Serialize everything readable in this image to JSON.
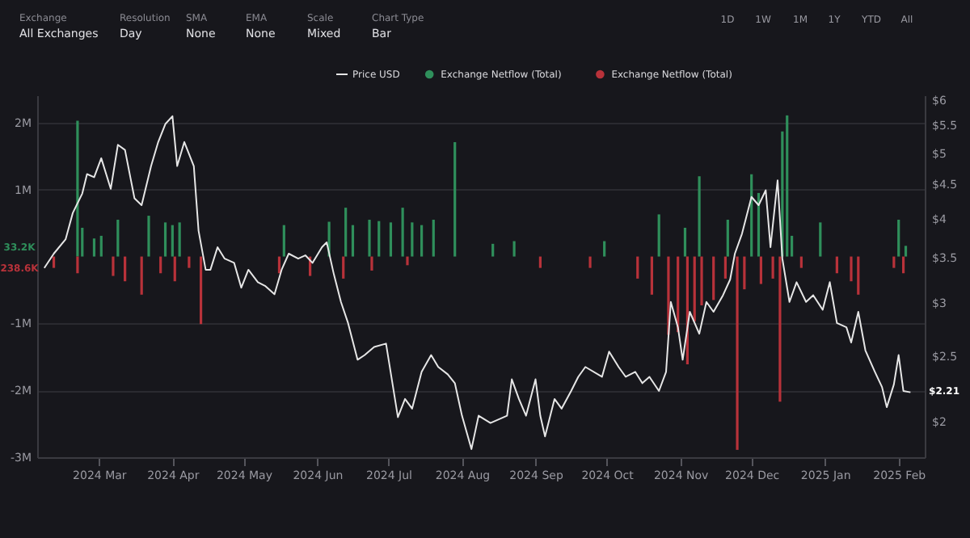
{
  "chart_data": {
    "type": "bar",
    "xlim": [
      "2024-02-04",
      "2025-02-12"
    ],
    "xticks": [
      {
        "value": "2024-03-01",
        "label": "2024 Mar"
      },
      {
        "value": "2024-04-01",
        "label": "2024 Apr"
      },
      {
        "value": "2024-05-01",
        "label": "2024 May"
      },
      {
        "value": "2024-06-01",
        "label": "2024 Jun"
      },
      {
        "value": "2024-07-01",
        "label": "2024 Jul"
      },
      {
        "value": "2024-08-01",
        "label": "2024 Aug"
      },
      {
        "value": "2024-09-01",
        "label": "2024 Sep"
      },
      {
        "value": "2024-10-01",
        "label": "2024 Oct"
      },
      {
        "value": "2024-11-01",
        "label": "2024 Nov"
      },
      {
        "value": "2024-12-01",
        "label": "2024 Dec"
      },
      {
        "value": "2025-01-01",
        "label": "2025 Jan"
      },
      {
        "value": "2025-02-01",
        "label": "2025 Feb"
      }
    ],
    "ylim": [
      -3000000,
      2410000
    ],
    "yticks": [
      {
        "value": 2000000,
        "label": "2M"
      },
      {
        "value": 1000000,
        "label": "1M"
      },
      {
        "value": -1000000,
        "label": "-1M"
      },
      {
        "value": -2000000,
        "label": "-2M"
      },
      {
        "value": -3000000,
        "label": "-3M"
      }
    ],
    "y2lim": [
      1.77,
      6.1
    ],
    "y2ticks": [
      {
        "value": 2,
        "label": "$2"
      },
      {
        "value": 2.5,
        "label": "$2.5"
      },
      {
        "value": 3,
        "label": "$3"
      },
      {
        "value": 3.5,
        "label": "$3.5"
      },
      {
        "value": 4,
        "label": "$4"
      },
      {
        "value": 4.5,
        "label": "$4.5"
      },
      {
        "value": 5,
        "label": "$5"
      },
      {
        "value": 5.5,
        "label": "$5.5"
      },
      {
        "value": 6,
        "label": "$6"
      }
    ],
    "log": "y2",
    "grid": "y",
    "legend": "top",
    "series": [
      {
        "name": "Price USD",
        "type": "line",
        "axis": "y2",
        "color": "#e6e6e6",
        "x": [
          "2024-02-07",
          "2024-02-11",
          "2024-02-16",
          "2024-02-19",
          "2024-02-23",
          "2024-02-25",
          "2024-02-28",
          "2024-03-02",
          "2024-03-06",
          "2024-03-09",
          "2024-03-12",
          "2024-03-16",
          "2024-03-19",
          "2024-03-23",
          "2024-03-26",
          "2024-03-29",
          "2024-04-01",
          "2024-04-03",
          "2024-04-06",
          "2024-04-10",
          "2024-04-12",
          "2024-04-15",
          "2024-04-17",
          "2024-04-20",
          "2024-04-23",
          "2024-04-27",
          "2024-04-30",
          "2024-05-03",
          "2024-05-07",
          "2024-05-10",
          "2024-05-14",
          "2024-05-17",
          "2024-05-20",
          "2024-05-24",
          "2024-05-27",
          "2024-05-30",
          "2024-06-03",
          "2024-06-05",
          "2024-06-08",
          "2024-06-11",
          "2024-06-14",
          "2024-06-18",
          "2024-06-21",
          "2024-06-25",
          "2024-06-30",
          "2024-07-05",
          "2024-07-08",
          "2024-07-11",
          "2024-07-15",
          "2024-07-19",
          "2024-07-22",
          "2024-07-26",
          "2024-07-29",
          "2024-08-01",
          "2024-08-05",
          "2024-08-08",
          "2024-08-13",
          "2024-08-20",
          "2024-08-22",
          "2024-08-25",
          "2024-08-28",
          "2024-09-01",
          "2024-09-03",
          "2024-09-05",
          "2024-09-09",
          "2024-09-12",
          "2024-09-16",
          "2024-09-19",
          "2024-09-22",
          "2024-09-29",
          "2024-10-02",
          "2024-10-06",
          "2024-10-09",
          "2024-10-13",
          "2024-10-16",
          "2024-10-19",
          "2024-10-23",
          "2024-10-26",
          "2024-10-28",
          "2024-10-31",
          "2024-11-02",
          "2024-11-05",
          "2024-11-09",
          "2024-11-12",
          "2024-11-15",
          "2024-11-19",
          "2024-11-22",
          "2024-11-24",
          "2024-11-27",
          "2024-12-01",
          "2024-12-04",
          "2024-12-07",
          "2024-12-09",
          "2024-12-12",
          "2024-12-14",
          "2024-12-17",
          "2024-12-20",
          "2024-12-24",
          "2024-12-27",
          "2024-12-31",
          "2025-01-03",
          "2025-01-06",
          "2025-01-10",
          "2025-01-12",
          "2025-01-15",
          "2025-01-18",
          "2025-01-22",
          "2025-01-25",
          "2025-01-27",
          "2025-01-30",
          "2025-02-01",
          "2025-02-03",
          "2025-02-06"
        ],
        "values": [
          3.38,
          3.55,
          3.73,
          4.08,
          4.36,
          4.66,
          4.61,
          4.92,
          4.43,
          5.15,
          5.06,
          4.29,
          4.19,
          4.79,
          5.2,
          5.53,
          5.68,
          4.79,
          5.2,
          4.79,
          3.84,
          3.36,
          3.36,
          3.63,
          3.49,
          3.44,
          3.16,
          3.36,
          3.22,
          3.18,
          3.09,
          3.36,
          3.55,
          3.49,
          3.53,
          3.44,
          3.63,
          3.69,
          3.31,
          3.01,
          2.8,
          2.47,
          2.51,
          2.58,
          2.61,
          2.03,
          2.16,
          2.09,
          2.37,
          2.51,
          2.41,
          2.35,
          2.28,
          2.04,
          1.82,
          2.04,
          1.99,
          2.04,
          2.31,
          2.16,
          2.04,
          2.31,
          2.04,
          1.9,
          2.16,
          2.09,
          2.22,
          2.33,
          2.41,
          2.33,
          2.54,
          2.41,
          2.33,
          2.37,
          2.28,
          2.33,
          2.22,
          2.37,
          3.01,
          2.76,
          2.47,
          2.91,
          2.7,
          3.01,
          2.91,
          3.08,
          3.25,
          3.55,
          3.8,
          4.31,
          4.19,
          4.41,
          3.63,
          4.56,
          3.49,
          3.01,
          3.22,
          3.01,
          3.08,
          2.93,
          3.22,
          2.8,
          2.76,
          2.62,
          2.91,
          2.55,
          2.37,
          2.25,
          2.1,
          2.27,
          2.51,
          2.22,
          2.21
        ]
      },
      {
        "name": "Exchange Netflow (Total)",
        "color": "#2f8f5b",
        "x": [
          "2024-02-21",
          "2024-02-23",
          "2024-02-28",
          "2024-03-02",
          "2024-03-09",
          "2024-03-22",
          "2024-03-29",
          "2024-04-01",
          "2024-04-04",
          "2024-05-18",
          "2024-06-06",
          "2024-06-13",
          "2024-06-16",
          "2024-06-23",
          "2024-06-27",
          "2024-07-02",
          "2024-07-07",
          "2024-07-11",
          "2024-07-15",
          "2024-07-20",
          "2024-07-29",
          "2024-08-14",
          "2024-08-23",
          "2024-09-30",
          "2024-10-23",
          "2024-11-03",
          "2024-11-09",
          "2024-11-21",
          "2024-12-01",
          "2024-12-04",
          "2024-12-14",
          "2024-12-16",
          "2024-12-18",
          "2024-12-30",
          "2025-02-01",
          "2025-02-04"
        ],
        "values": [
          2030000,
          430000,
          270000,
          310000,
          550000,
          610000,
          510000,
          470000,
          510000,
          470000,
          520000,
          730000,
          470000,
          550000,
          530000,
          510000,
          730000,
          510000,
          470000,
          550000,
          1710000,
          190000,
          230000,
          230000,
          630000,
          430000,
          1200000,
          550000,
          1230000,
          950000,
          1870000,
          2110000,
          310000,
          510000,
          550000,
          160000
        ]
      },
      {
        "name": "Exchange Netflow (Total)",
        "color": "#b8323a",
        "x": [
          "2024-02-11",
          "2024-02-21",
          "2024-03-07",
          "2024-03-12",
          "2024-03-19",
          "2024-03-27",
          "2024-04-02",
          "2024-04-08",
          "2024-04-13",
          "2024-05-16",
          "2024-05-29",
          "2024-06-12",
          "2024-06-24",
          "2024-07-09",
          "2024-09-03",
          "2024-09-24",
          "2024-10-14",
          "2024-10-20",
          "2024-10-27",
          "2024-10-31",
          "2024-11-04",
          "2024-11-07",
          "2024-11-10",
          "2024-11-15",
          "2024-11-20",
          "2024-11-25",
          "2024-11-28",
          "2024-12-05",
          "2024-12-10",
          "2024-12-13",
          "2024-12-22",
          "2025-01-06",
          "2025-01-12",
          "2025-01-15",
          "2025-01-30",
          "2025-02-03"
        ],
        "values": [
          -170000,
          -250000,
          -290000,
          -370000,
          -570000,
          -250000,
          -370000,
          -170000,
          -1010000,
          -250000,
          -290000,
          -330000,
          -210000,
          -130000,
          -170000,
          -170000,
          -330000,
          -570000,
          -1170000,
          -1130000,
          -1610000,
          -970000,
          -730000,
          -650000,
          -330000,
          -2890000,
          -490000,
          -410000,
          -330000,
          -2170000,
          -170000,
          -250000,
          -370000,
          -570000,
          -170000,
          -250000
        ]
      }
    ],
    "annotations": [
      "Exchange",
      "All Exchanges",
      "Resolution",
      "Day",
      "SMA",
      "None",
      "EMA",
      "None",
      "Scale",
      "Mixed",
      "Chart Type",
      "Bar",
      "1D",
      "1W",
      "1M",
      "1Y",
      "YTD",
      "All",
      "33.2K",
      "238.6K",
      "$2.21"
    ]
  }
}
